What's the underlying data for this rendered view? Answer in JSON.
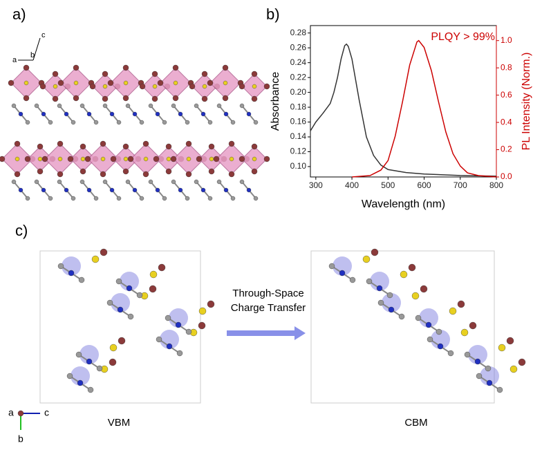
{
  "panels": {
    "a": "a)",
    "b": "b)",
    "c": "c)"
  },
  "axes_a": {
    "a": "a",
    "b": "b",
    "c": "c"
  },
  "axes_c": {
    "a": "a",
    "b": "b",
    "c": "c"
  },
  "arrow_text": [
    "Through-Space",
    "Charge Transfer"
  ],
  "vbm": "VBM",
  "cbm": "CBM",
  "chart_data": {
    "type": "line",
    "xlabel": "Wavelength (nm)",
    "ylabel": "Absorbance",
    "y2label": "PL Intensity (Norm.)",
    "annotation": "PLQY > 99%",
    "xlim": [
      285,
      800
    ],
    "xticks": [
      300,
      400,
      500,
      600,
      700,
      800
    ],
    "ylim": [
      0.086,
      0.29
    ],
    "yticks": [
      {
        "value": 0.1,
        "label": "0.10"
      },
      0.12,
      0.14,
      0.16,
      0.18,
      {
        "value": 0.2,
        "label": "0.20"
      },
      0.22,
      0.24,
      0.26,
      0.28
    ],
    "y2lim": [
      0,
      1.11
    ],
    "y2ticks": [
      {
        "value": 0,
        "label": "0.0"
      },
      0.2,
      0.4,
      0.6,
      0.8,
      {
        "value": 1,
        "label": "1.0"
      }
    ],
    "series": [
      {
        "color": "#333333",
        "x": [
          285,
          300,
          320,
          340,
          350,
          360,
          370,
          380,
          385,
          390,
          400,
          420,
          440,
          460,
          480,
          500,
          550,
          600,
          700,
          800
        ],
        "values": [
          0.148,
          0.16,
          0.172,
          0.185,
          0.2,
          0.22,
          0.245,
          0.263,
          0.265,
          0.262,
          0.245,
          0.19,
          0.14,
          0.115,
          0.102,
          0.096,
          0.092,
          0.09,
          0.088,
          0.087
        ]
      },
      {
        "color": "#cc0000",
        "axis": "y2",
        "x": [
          400,
          450,
          480,
          500,
          520,
          540,
          560,
          580,
          585,
          600,
          620,
          640,
          660,
          680,
          700,
          720,
          750,
          800
        ],
        "values": [
          0,
          0.01,
          0.05,
          0.12,
          0.3,
          0.55,
          0.82,
          0.99,
          1.0,
          0.95,
          0.78,
          0.55,
          0.33,
          0.17,
          0.08,
          0.03,
          0.01,
          0
        ]
      }
    ]
  }
}
